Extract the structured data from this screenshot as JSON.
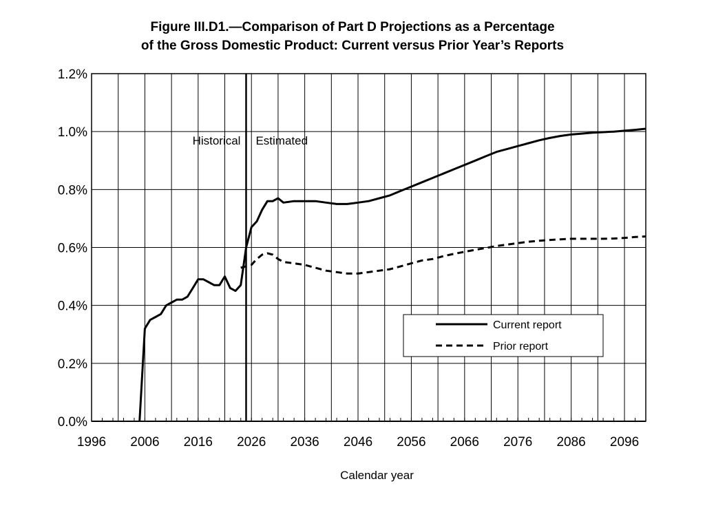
{
  "chart_data": {
    "type": "line",
    "title_line1": "Figure III.D1.—Comparison of Part D Projections as a Percentage",
    "title_line2": "of the Gross Domestic Product: Current versus Prior Year’s Reports",
    "xlabel": "Calendar year",
    "ylabel": "",
    "xlim": [
      1996,
      2100
    ],
    "ylim": [
      0,
      1.2
    ],
    "x_ticks": [
      1996,
      2006,
      2016,
      2026,
      2036,
      2046,
      2056,
      2066,
      2076,
      2086,
      2096
    ],
    "y_ticks": [
      0,
      0.2,
      0.4,
      0.6,
      0.8,
      1.0,
      1.2
    ],
    "y_tick_labels": [
      "0.0%",
      "0.2%",
      "0.4%",
      "0.6%",
      "0.8%",
      "1.0%",
      "1.2%"
    ],
    "grid": true,
    "divider_year": 2025,
    "annotations": {
      "historical": "Historical",
      "estimated": "Estimated"
    },
    "legend_position": "center-right",
    "series": [
      {
        "name": "Current report",
        "style": "solid",
        "color": "#000000",
        "points": [
          [
            2005,
            0.0
          ],
          [
            2006,
            0.32
          ],
          [
            2007,
            0.35
          ],
          [
            2008,
            0.36
          ],
          [
            2009,
            0.37
          ],
          [
            2010,
            0.4
          ],
          [
            2011,
            0.41
          ],
          [
            2012,
            0.42
          ],
          [
            2013,
            0.42
          ],
          [
            2014,
            0.43
          ],
          [
            2015,
            0.46
          ],
          [
            2016,
            0.49
          ],
          [
            2017,
            0.49
          ],
          [
            2018,
            0.48
          ],
          [
            2019,
            0.47
          ],
          [
            2020,
            0.47
          ],
          [
            2021,
            0.5
          ],
          [
            2022,
            0.46
          ],
          [
            2023,
            0.45
          ],
          [
            2024,
            0.47
          ],
          [
            2025,
            0.6
          ],
          [
            2026,
            0.67
          ],
          [
            2027,
            0.69
          ],
          [
            2028,
            0.73
          ],
          [
            2029,
            0.76
          ],
          [
            2030,
            0.76
          ],
          [
            2031,
            0.77
          ],
          [
            2032,
            0.755
          ],
          [
            2034,
            0.76
          ],
          [
            2036,
            0.76
          ],
          [
            2038,
            0.76
          ],
          [
            2040,
            0.755
          ],
          [
            2042,
            0.75
          ],
          [
            2044,
            0.75
          ],
          [
            2046,
            0.755
          ],
          [
            2048,
            0.76
          ],
          [
            2050,
            0.77
          ],
          [
            2052,
            0.78
          ],
          [
            2054,
            0.795
          ],
          [
            2056,
            0.81
          ],
          [
            2058,
            0.825
          ],
          [
            2060,
            0.84
          ],
          [
            2062,
            0.855
          ],
          [
            2064,
            0.87
          ],
          [
            2066,
            0.885
          ],
          [
            2068,
            0.9
          ],
          [
            2070,
            0.915
          ],
          [
            2072,
            0.93
          ],
          [
            2074,
            0.94
          ],
          [
            2076,
            0.95
          ],
          [
            2078,
            0.96
          ],
          [
            2080,
            0.97
          ],
          [
            2082,
            0.978
          ],
          [
            2084,
            0.985
          ],
          [
            2086,
            0.99
          ],
          [
            2088,
            0.993
          ],
          [
            2090,
            0.996
          ],
          [
            2092,
            0.998
          ],
          [
            2094,
            1.0
          ],
          [
            2096,
            1.003
          ],
          [
            2098,
            1.006
          ],
          [
            2100,
            1.01
          ]
        ]
      },
      {
        "name": "Prior report",
        "style": "dashed",
        "color": "#000000",
        "points": [
          [
            2024,
            0.53
          ],
          [
            2025,
            0.535
          ],
          [
            2026,
            0.54
          ],
          [
            2027,
            0.56
          ],
          [
            2028,
            0.575
          ],
          [
            2029,
            0.58
          ],
          [
            2030,
            0.575
          ],
          [
            2031,
            0.56
          ],
          [
            2032,
            0.55
          ],
          [
            2034,
            0.545
          ],
          [
            2036,
            0.54
          ],
          [
            2038,
            0.53
          ],
          [
            2040,
            0.52
          ],
          [
            2042,
            0.515
          ],
          [
            2044,
            0.51
          ],
          [
            2046,
            0.51
          ],
          [
            2048,
            0.515
          ],
          [
            2050,
            0.52
          ],
          [
            2052,
            0.525
          ],
          [
            2054,
            0.535
          ],
          [
            2056,
            0.545
          ],
          [
            2058,
            0.555
          ],
          [
            2060,
            0.56
          ],
          [
            2062,
            0.57
          ],
          [
            2064,
            0.578
          ],
          [
            2066,
            0.585
          ],
          [
            2068,
            0.592
          ],
          [
            2070,
            0.598
          ],
          [
            2072,
            0.605
          ],
          [
            2074,
            0.61
          ],
          [
            2076,
            0.615
          ],
          [
            2078,
            0.62
          ],
          [
            2080,
            0.623
          ],
          [
            2082,
            0.626
          ],
          [
            2084,
            0.628
          ],
          [
            2086,
            0.63
          ],
          [
            2088,
            0.63
          ],
          [
            2090,
            0.63
          ],
          [
            2092,
            0.63
          ],
          [
            2094,
            0.631
          ],
          [
            2096,
            0.633
          ],
          [
            2098,
            0.636
          ],
          [
            2100,
            0.638
          ]
        ]
      }
    ]
  }
}
